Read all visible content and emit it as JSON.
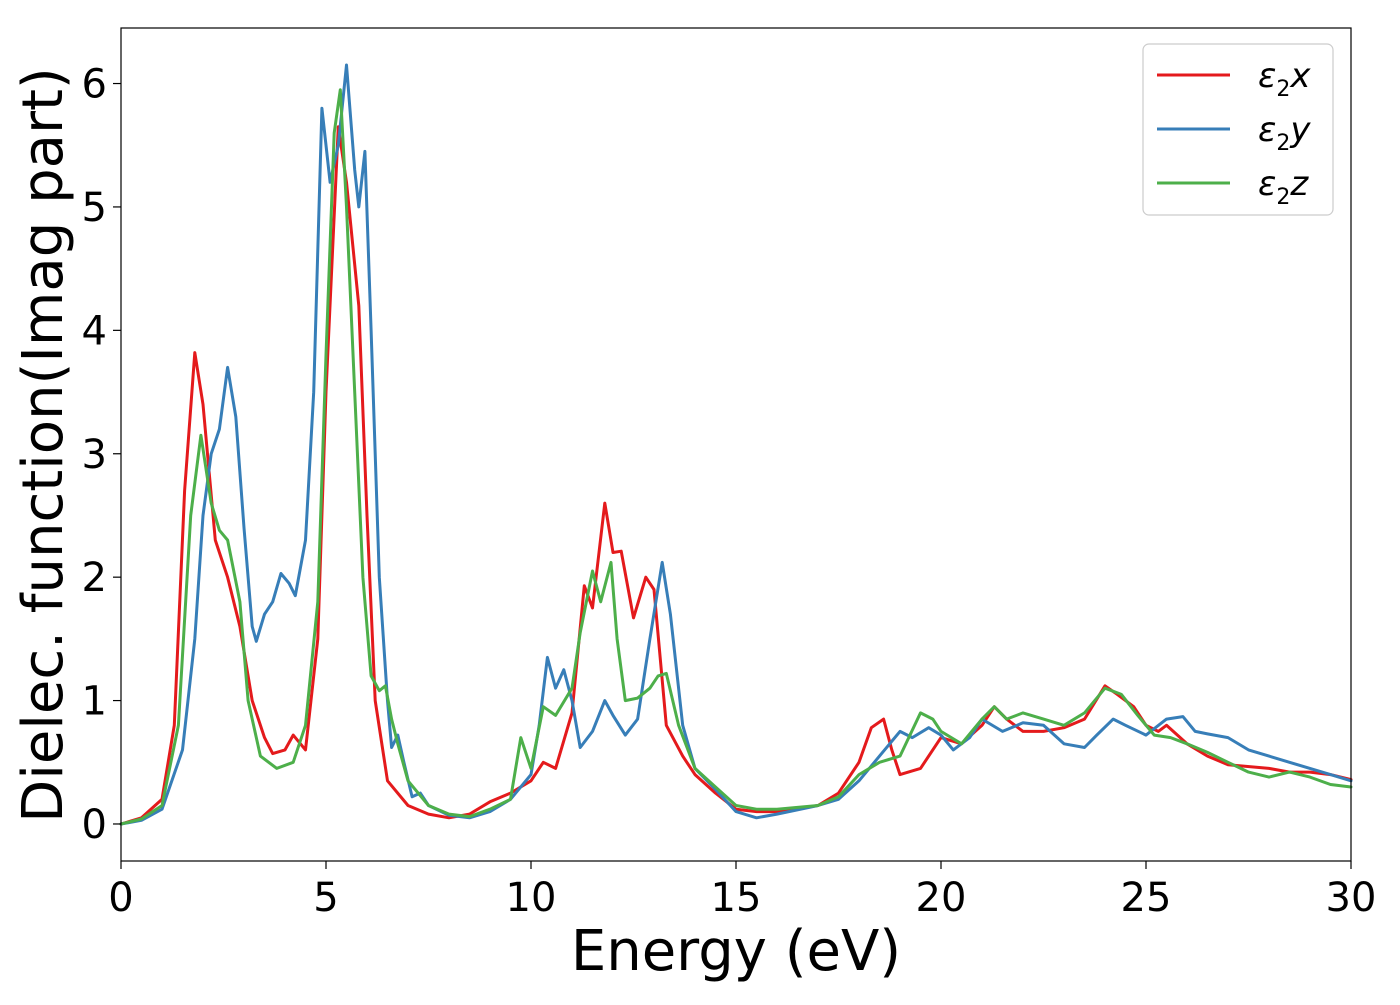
{
  "chart_data": {
    "type": "line",
    "title": "",
    "xlabel": "Energy (eV)",
    "ylabel": "Dielec. function(Imag part)",
    "xlim": [
      0,
      30
    ],
    "ylim": [
      -0.3,
      6.45
    ],
    "xticks": [
      0,
      5,
      10,
      15,
      20,
      25,
      30
    ],
    "yticks": [
      0,
      1,
      2,
      3,
      4,
      5,
      6
    ],
    "grid": false,
    "legend_position": "top-right",
    "series": [
      {
        "name": "ε2x",
        "legend": {
          "base": "ε",
          "sub": "2",
          "suffix": "x"
        },
        "color": "#e41a1c",
        "points": [
          [
            0,
            0
          ],
          [
            0.5,
            0.05
          ],
          [
            1.0,
            0.2
          ],
          [
            1.3,
            0.8
          ],
          [
            1.55,
            2.7
          ],
          [
            1.8,
            3.82
          ],
          [
            2.0,
            3.4
          ],
          [
            2.3,
            2.3
          ],
          [
            2.6,
            2.0
          ],
          [
            2.9,
            1.6
          ],
          [
            3.2,
            1.0
          ],
          [
            3.5,
            0.7
          ],
          [
            3.7,
            0.57
          ],
          [
            4.0,
            0.6
          ],
          [
            4.2,
            0.72
          ],
          [
            4.5,
            0.6
          ],
          [
            4.8,
            1.5
          ],
          [
            5.0,
            3.5
          ],
          [
            5.3,
            5.65
          ],
          [
            5.5,
            5.2
          ],
          [
            5.8,
            4.2
          ],
          [
            6.0,
            2.5
          ],
          [
            6.2,
            1.0
          ],
          [
            6.5,
            0.35
          ],
          [
            7.0,
            0.15
          ],
          [
            7.5,
            0.08
          ],
          [
            8.0,
            0.05
          ],
          [
            8.5,
            0.08
          ],
          [
            9.0,
            0.18
          ],
          [
            9.5,
            0.25
          ],
          [
            10.0,
            0.35
          ],
          [
            10.3,
            0.5
          ],
          [
            10.6,
            0.45
          ],
          [
            11.0,
            0.9
          ],
          [
            11.3,
            1.93
          ],
          [
            11.5,
            1.75
          ],
          [
            11.8,
            2.6
          ],
          [
            12.0,
            2.2
          ],
          [
            12.2,
            2.21
          ],
          [
            12.5,
            1.67
          ],
          [
            12.8,
            2.0
          ],
          [
            13.0,
            1.9
          ],
          [
            13.3,
            0.8
          ],
          [
            13.7,
            0.55
          ],
          [
            14.0,
            0.4
          ],
          [
            14.5,
            0.25
          ],
          [
            15.0,
            0.12
          ],
          [
            15.5,
            0.1
          ],
          [
            16.0,
            0.1
          ],
          [
            17.0,
            0.15
          ],
          [
            17.5,
            0.25
          ],
          [
            18.0,
            0.5
          ],
          [
            18.3,
            0.78
          ],
          [
            18.6,
            0.85
          ],
          [
            18.8,
            0.6
          ],
          [
            19.0,
            0.4
          ],
          [
            19.5,
            0.45
          ],
          [
            20.0,
            0.7
          ],
          [
            20.5,
            0.65
          ],
          [
            21.0,
            0.8
          ],
          [
            21.3,
            0.95
          ],
          [
            21.6,
            0.85
          ],
          [
            22.0,
            0.75
          ],
          [
            22.5,
            0.75
          ],
          [
            23.0,
            0.78
          ],
          [
            23.5,
            0.85
          ],
          [
            24.0,
            1.12
          ],
          [
            24.3,
            1.05
          ],
          [
            24.7,
            0.95
          ],
          [
            25.0,
            0.8
          ],
          [
            25.3,
            0.75
          ],
          [
            25.5,
            0.8
          ],
          [
            26.0,
            0.65
          ],
          [
            26.5,
            0.55
          ],
          [
            27.0,
            0.48
          ],
          [
            28.0,
            0.45
          ],
          [
            28.5,
            0.42
          ],
          [
            29.0,
            0.42
          ],
          [
            29.5,
            0.4
          ],
          [
            30.0,
            0.36
          ]
        ]
      },
      {
        "name": "ε2y",
        "legend": {
          "base": "ε",
          "sub": "2",
          "suffix": "y"
        },
        "color": "#377eb8",
        "points": [
          [
            0,
            0
          ],
          [
            0.5,
            0.03
          ],
          [
            1.0,
            0.12
          ],
          [
            1.5,
            0.6
          ],
          [
            1.8,
            1.5
          ],
          [
            2.0,
            2.5
          ],
          [
            2.2,
            3.0
          ],
          [
            2.4,
            3.2
          ],
          [
            2.6,
            3.7
          ],
          [
            2.8,
            3.3
          ],
          [
            3.0,
            2.4
          ],
          [
            3.2,
            1.6
          ],
          [
            3.3,
            1.48
          ],
          [
            3.5,
            1.7
          ],
          [
            3.7,
            1.8
          ],
          [
            3.9,
            2.03
          ],
          [
            4.1,
            1.95
          ],
          [
            4.25,
            1.85
          ],
          [
            4.5,
            2.3
          ],
          [
            4.7,
            3.5
          ],
          [
            4.9,
            5.8
          ],
          [
            5.1,
            5.2
          ],
          [
            5.3,
            5.5
          ],
          [
            5.5,
            6.15
          ],
          [
            5.7,
            5.3
          ],
          [
            5.8,
            5.0
          ],
          [
            5.95,
            5.45
          ],
          [
            6.1,
            4.0
          ],
          [
            6.3,
            2.0
          ],
          [
            6.5,
            1.0
          ],
          [
            6.6,
            0.62
          ],
          [
            6.75,
            0.72
          ],
          [
            6.9,
            0.5
          ],
          [
            7.1,
            0.22
          ],
          [
            7.3,
            0.25
          ],
          [
            7.5,
            0.15
          ],
          [
            8.0,
            0.07
          ],
          [
            8.5,
            0.05
          ],
          [
            9.0,
            0.1
          ],
          [
            9.5,
            0.2
          ],
          [
            10.0,
            0.4
          ],
          [
            10.2,
            0.8
          ],
          [
            10.4,
            1.35
          ],
          [
            10.6,
            1.1
          ],
          [
            10.8,
            1.25
          ],
          [
            11.0,
            1.0
          ],
          [
            11.2,
            0.62
          ],
          [
            11.5,
            0.75
          ],
          [
            11.8,
            1.0
          ],
          [
            12.0,
            0.88
          ],
          [
            12.3,
            0.72
          ],
          [
            12.6,
            0.85
          ],
          [
            12.9,
            1.5
          ],
          [
            13.2,
            2.12
          ],
          [
            13.4,
            1.7
          ],
          [
            13.7,
            0.8
          ],
          [
            14.0,
            0.45
          ],
          [
            14.5,
            0.28
          ],
          [
            15.0,
            0.1
          ],
          [
            15.5,
            0.05
          ],
          [
            16.0,
            0.08
          ],
          [
            17.0,
            0.15
          ],
          [
            17.5,
            0.2
          ],
          [
            18.0,
            0.35
          ],
          [
            18.5,
            0.55
          ],
          [
            19.0,
            0.75
          ],
          [
            19.3,
            0.7
          ],
          [
            19.7,
            0.78
          ],
          [
            20.0,
            0.72
          ],
          [
            20.3,
            0.6
          ],
          [
            20.7,
            0.7
          ],
          [
            21.0,
            0.85
          ],
          [
            21.5,
            0.75
          ],
          [
            22.0,
            0.82
          ],
          [
            22.5,
            0.8
          ],
          [
            23.0,
            0.65
          ],
          [
            23.5,
            0.62
          ],
          [
            23.8,
            0.72
          ],
          [
            24.2,
            0.85
          ],
          [
            24.5,
            0.8
          ],
          [
            25.0,
            0.72
          ],
          [
            25.5,
            0.85
          ],
          [
            25.9,
            0.87
          ],
          [
            26.2,
            0.75
          ],
          [
            26.5,
            0.73
          ],
          [
            27.0,
            0.7
          ],
          [
            27.5,
            0.6
          ],
          [
            28.0,
            0.55
          ],
          [
            28.5,
            0.5
          ],
          [
            29.0,
            0.45
          ],
          [
            29.5,
            0.4
          ],
          [
            30.0,
            0.35
          ]
        ]
      },
      {
        "name": "ε2z",
        "legend": {
          "base": "ε",
          "sub": "2",
          "suffix": "z"
        },
        "color": "#4daf4a",
        "points": [
          [
            0,
            0
          ],
          [
            0.5,
            0.04
          ],
          [
            1.0,
            0.15
          ],
          [
            1.4,
            0.8
          ],
          [
            1.7,
            2.5
          ],
          [
            1.95,
            3.15
          ],
          [
            2.2,
            2.6
          ],
          [
            2.4,
            2.38
          ],
          [
            2.6,
            2.3
          ],
          [
            2.9,
            1.8
          ],
          [
            3.1,
            1.0
          ],
          [
            3.4,
            0.55
          ],
          [
            3.8,
            0.45
          ],
          [
            4.2,
            0.5
          ],
          [
            4.5,
            0.8
          ],
          [
            4.8,
            1.8
          ],
          [
            5.0,
            3.8
          ],
          [
            5.2,
            5.6
          ],
          [
            5.35,
            5.95
          ],
          [
            5.5,
            5.0
          ],
          [
            5.7,
            3.5
          ],
          [
            5.9,
            2.0
          ],
          [
            6.1,
            1.2
          ],
          [
            6.3,
            1.08
          ],
          [
            6.45,
            1.12
          ],
          [
            6.6,
            0.85
          ],
          [
            6.75,
            0.65
          ],
          [
            7.0,
            0.35
          ],
          [
            7.5,
            0.15
          ],
          [
            8.0,
            0.08
          ],
          [
            8.5,
            0.06
          ],
          [
            9.0,
            0.12
          ],
          [
            9.5,
            0.2
          ],
          [
            9.75,
            0.7
          ],
          [
            10.0,
            0.45
          ],
          [
            10.3,
            0.95
          ],
          [
            10.6,
            0.88
          ],
          [
            11.0,
            1.1
          ],
          [
            11.2,
            1.55
          ],
          [
            11.5,
            2.05
          ],
          [
            11.7,
            1.8
          ],
          [
            11.95,
            2.12
          ],
          [
            12.1,
            1.5
          ],
          [
            12.3,
            1.0
          ],
          [
            12.6,
            1.02
          ],
          [
            12.9,
            1.1
          ],
          [
            13.1,
            1.2
          ],
          [
            13.3,
            1.22
          ],
          [
            13.6,
            0.8
          ],
          [
            14.0,
            0.45
          ],
          [
            14.5,
            0.3
          ],
          [
            15.0,
            0.15
          ],
          [
            15.5,
            0.12
          ],
          [
            16.0,
            0.12
          ],
          [
            17.0,
            0.15
          ],
          [
            17.5,
            0.22
          ],
          [
            18.0,
            0.4
          ],
          [
            18.5,
            0.5
          ],
          [
            19.0,
            0.55
          ],
          [
            19.5,
            0.9
          ],
          [
            19.8,
            0.85
          ],
          [
            20.0,
            0.75
          ],
          [
            20.5,
            0.65
          ],
          [
            21.0,
            0.85
          ],
          [
            21.3,
            0.95
          ],
          [
            21.6,
            0.85
          ],
          [
            22.0,
            0.9
          ],
          [
            22.5,
            0.85
          ],
          [
            23.0,
            0.8
          ],
          [
            23.5,
            0.9
          ],
          [
            24.0,
            1.1
          ],
          [
            24.4,
            1.05
          ],
          [
            24.8,
            0.88
          ],
          [
            25.2,
            0.72
          ],
          [
            25.6,
            0.7
          ],
          [
            26.0,
            0.65
          ],
          [
            26.5,
            0.58
          ],
          [
            27.0,
            0.5
          ],
          [
            27.5,
            0.42
          ],
          [
            28.0,
            0.38
          ],
          [
            28.5,
            0.42
          ],
          [
            29.0,
            0.38
          ],
          [
            29.5,
            0.32
          ],
          [
            30.0,
            0.3
          ]
        ]
      }
    ]
  }
}
